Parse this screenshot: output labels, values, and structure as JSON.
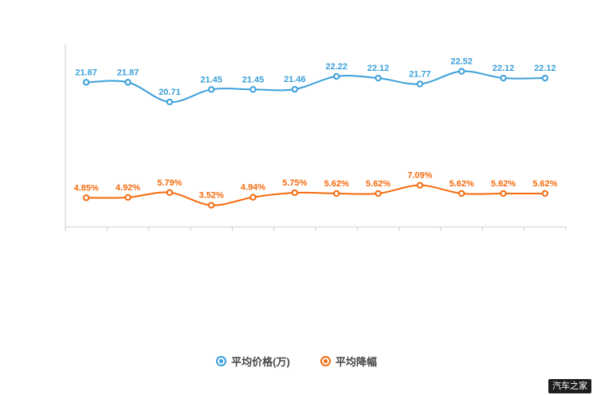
{
  "chart_data": {
    "type": "line",
    "title": "",
    "xlabel": "",
    "ylabel": "",
    "x_tick_labels": [],
    "grid": false,
    "legend_position": "bottom",
    "series": [
      {
        "name": "平均价格(万)",
        "color": "#3a9fd9",
        "axis": "left",
        "values": [
          21.87,
          21.87,
          20.71,
          21.45,
          21.45,
          21.46,
          22.22,
          22.12,
          21.77,
          22.52,
          22.12,
          22.12
        ],
        "labels": [
          "21.87",
          "21.87",
          "20.71",
          "21.45",
          "21.45",
          "21.46",
          "22.22",
          "22.12",
          "21.77",
          "22.52",
          "22.12",
          "22.12"
        ]
      },
      {
        "name": "平均降幅",
        "color": "#f56a0c",
        "axis": "right",
        "values": [
          4.85,
          4.92,
          5.79,
          3.52,
          4.94,
          5.75,
          5.62,
          5.62,
          7.09,
          5.62,
          5.62,
          5.62
        ],
        "labels": [
          "4.85%",
          "4.92%",
          "5.79%",
          "3.52%",
          "4.94%",
          "5.75%",
          "5.62%",
          "5.62%",
          "7.09%",
          "5.62%",
          "5.62%",
          "5.62%"
        ]
      }
    ],
    "colors": {
      "axis_line": "#cccccc",
      "blue_series": "#3a9fd9",
      "orange_series": "#f56a0c"
    }
  },
  "legend": {
    "items": [
      {
        "label": "平均价格(万)"
      },
      {
        "label": "平均降幅"
      }
    ]
  },
  "watermark": {
    "text": "汽车之家"
  }
}
